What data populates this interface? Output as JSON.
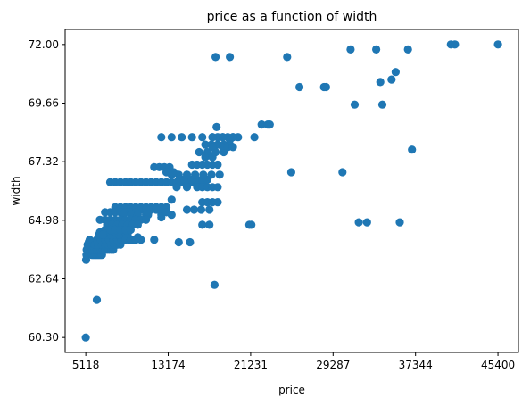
{
  "chart_data": {
    "type": "scatter",
    "title": "price as a function of width",
    "xlabel": "price",
    "ylabel": "width",
    "xlim": [
      3100,
      47400
    ],
    "ylim": [
      59.7,
      72.6
    ],
    "xticks": [
      5118,
      13174,
      21231,
      29287,
      37344,
      45400
    ],
    "xtick_labels": [
      "5118",
      "13174",
      "21231",
      "29287",
      "37344",
      "45400"
    ],
    "yticks": [
      60.3,
      62.64,
      64.98,
      67.32,
      69.66,
      72.0
    ],
    "ytick_labels": [
      "60.30",
      "62.64",
      "64.98",
      "67.32",
      "69.66",
      "72.00"
    ],
    "grid": false,
    "marker_color": "#1f77b4",
    "series": [
      {
        "x": [
          5118,
          5150,
          5180,
          5200,
          5300,
          5400,
          5500,
          5450,
          5600,
          5700,
          5800,
          5900,
          6000,
          6100,
          6200,
          6300,
          6400,
          6500,
          6600,
          6700,
          5800,
          6000,
          6200,
          6400,
          6600,
          6800,
          7000,
          7200,
          7400,
          7600,
          7800,
          6000,
          6300,
          6700,
          7000,
          7300,
          7600,
          7900,
          8200,
          8500,
          6200,
          6600,
          7000,
          7400,
          7800,
          8200,
          8600,
          9000,
          9400,
          9800,
          6400,
          6800,
          7200,
          7600,
          8000,
          8400,
          8800,
          9200,
          6500,
          7000,
          7500,
          8000,
          8500,
          9000,
          7500,
          8000,
          8500,
          9000,
          9500,
          10000,
          10500,
          11000,
          11500,
          12000,
          12500,
          13000,
          13500,
          14000,
          14500,
          15000,
          15500,
          16000,
          16500,
          8000,
          8500,
          9000,
          9500,
          10000,
          10500,
          11000,
          11500,
          12000,
          12500,
          13000,
          8500,
          9000,
          9500,
          10000,
          10500,
          11000,
          11500,
          12000,
          12500,
          7000,
          7500,
          8000,
          8500,
          9000,
          9500,
          10000,
          8800,
          9600,
          10200,
          11000,
          11200,
          12500,
          13500,
          6500,
          7000,
          7500,
          8000,
          8500,
          9000,
          9500,
          10000,
          10500,
          11000,
          7200,
          7700,
          8200,
          8700,
          9200,
          9700,
          10200,
          7000,
          7500,
          8000,
          8500,
          9000,
          9500,
          9000,
          9500,
          10000,
          10500,
          6800,
          10200,
          6200,
          11800,
          12500,
          13000,
          13500,
          14000,
          15000,
          16000,
          16500,
          17000,
          17500,
          18000,
          14500,
          15000,
          15500,
          16000,
          16500,
          17000,
          13500,
          14200,
          15000,
          15800,
          16600,
          17400,
          18200,
          15500,
          16000,
          16500,
          17000,
          17500,
          18000,
          16200,
          17000,
          17800,
          18600,
          16800,
          17400,
          18000,
          18600,
          19200,
          17500,
          18000,
          18500,
          19000,
          19500,
          20000,
          12500,
          13500,
          14500,
          15500,
          16500,
          17500,
          18500,
          19500,
          17500,
          18500,
          19000,
          19500,
          16800,
          17500,
          11800,
          12300,
          12800,
          13300,
          13000,
          13700,
          16500,
          17000,
          17500,
          18000,
          15000,
          15700,
          16400,
          17200,
          16500,
          17200,
          15300,
          14200,
          17700,
          17800,
          19200,
          21100,
          21300,
          21600,
          22300,
          22900,
          23100,
          17900,
          19200,
          24800,
          25200,
          26000,
          28400,
          28600,
          30200,
          31000,
          31400,
          31800,
          32600,
          33500,
          33900,
          34100,
          35000,
          35400,
          35800,
          36600,
          37000,
          40800,
          41200,
          45400
        ]
      }
    ],
    "y_values_note_removed": true
  },
  "points_y": [
    60.3,
    63.4,
    63.6,
    63.8,
    64.0,
    64.1,
    64.2,
    63.9,
    63.7,
    63.6,
    63.6,
    63.6,
    63.6,
    63.6,
    63.6,
    63.6,
    63.6,
    63.6,
    63.6,
    63.6,
    63.8,
    63.8,
    63.8,
    63.8,
    63.8,
    63.8,
    63.8,
    63.8,
    63.8,
    63.8,
    63.8,
    64.0,
    64.0,
    64.0,
    64.0,
    64.0,
    64.0,
    64.0,
    64.0,
    64.0,
    64.2,
    64.2,
    64.2,
    64.2,
    64.2,
    64.2,
    64.2,
    64.2,
    64.2,
    64.2,
    64.4,
    64.4,
    64.4,
    64.4,
    64.4,
    64.4,
    64.4,
    64.4,
    64.5,
    64.5,
    64.5,
    64.5,
    64.5,
    64.5,
    66.5,
    66.5,
    66.5,
    66.5,
    66.5,
    66.5,
    66.5,
    66.5,
    66.5,
    66.5,
    66.5,
    66.5,
    66.5,
    66.5,
    66.5,
    66.5,
    66.5,
    66.5,
    66.5,
    65.5,
    65.5,
    65.5,
    65.5,
    65.5,
    65.5,
    65.5,
    65.5,
    65.5,
    65.5,
    65.5,
    65.4,
    65.4,
    65.4,
    65.4,
    65.4,
    65.4,
    65.4,
    65.4,
    65.4,
    65.3,
    65.3,
    65.3,
    65.3,
    65.3,
    65.3,
    65.3,
    65.2,
    65.2,
    65.2,
    65.2,
    65.2,
    65.2,
    65.2,
    65.0,
    65.0,
    65.0,
    65.0,
    65.0,
    65.0,
    65.0,
    65.0,
    65.0,
    65.0,
    64.8,
    64.8,
    64.8,
    64.8,
    64.8,
    64.8,
    64.8,
    64.6,
    64.6,
    64.6,
    64.6,
    64.6,
    64.6,
    64.2,
    64.2,
    64.2,
    64.2,
    64.4,
    64.3,
    61.8,
    64.2,
    65.1,
    65.3,
    65.8,
    66.3,
    66.3,
    66.3,
    66.3,
    66.3,
    66.3,
    66.3,
    66.6,
    66.6,
    66.6,
    66.6,
    66.6,
    66.6,
    66.8,
    66.8,
    66.8,
    66.8,
    66.8,
    66.8,
    66.8,
    67.2,
    67.2,
    67.2,
    67.2,
    67.2,
    67.2,
    67.7,
    67.7,
    67.7,
    67.7,
    68.0,
    68.0,
    68.0,
    68.0,
    68.0,
    68.3,
    68.3,
    68.3,
    68.3,
    68.3,
    68.3,
    68.3,
    68.3,
    68.3,
    68.3,
    68.3,
    68.3,
    68.3,
    68.3,
    67.9,
    67.9,
    67.9,
    67.9,
    67.5,
    67.5,
    67.1,
    67.1,
    67.1,
    67.1,
    66.9,
    66.9,
    65.7,
    65.7,
    65.7,
    65.7,
    65.4,
    65.4,
    65.4,
    65.4,
    64.8,
    64.8,
    64.1,
    64.1,
    62.4,
    71.5,
    71.5,
    64.8,
    64.8,
    68.3,
    68.8,
    68.8,
    68.8,
    68.7,
    68.2,
    71.5,
    66.9,
    70.3,
    70.3,
    70.3,
    66.9,
    71.8,
    69.6,
    64.9,
    64.9,
    71.8,
    70.5,
    69.6,
    70.6,
    70.9,
    64.9,
    71.8,
    67.8,
    72.0,
    72.0,
    72.0
  ]
}
